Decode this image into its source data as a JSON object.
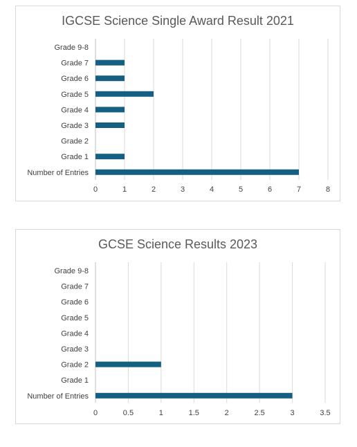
{
  "chart_data": [
    {
      "type": "bar",
      "orientation": "horizontal",
      "title": "IGCSE Science Single Award Result 2021",
      "categories": [
        "Grade 9-8",
        "Grade 7",
        "Grade 6",
        "Grade 5",
        "Grade 4",
        "Grade 3",
        "Grade 2",
        "Grade 1",
        "Number of Entries"
      ],
      "values": [
        0,
        1,
        1,
        2,
        1,
        1,
        0,
        1,
        7
      ],
      "xlim": [
        0,
        8
      ],
      "xticks": [
        "0",
        "1",
        "2",
        "3",
        "4",
        "5",
        "6",
        "7",
        "8"
      ],
      "xlabel": "",
      "ylabel": "",
      "grid": "vertical",
      "legend": "none",
      "bar_color": "#156082"
    },
    {
      "type": "bar",
      "orientation": "horizontal",
      "title": "GCSE Science Results 2023",
      "categories": [
        "Grade 9-8",
        "Grade 7",
        "Grade 6",
        "Grade 5",
        "Grade 4",
        "Grade 3",
        "Grade 2",
        "Grade 1",
        "Number of Entries"
      ],
      "values": [
        0,
        0,
        0,
        0,
        0,
        0,
        1,
        0,
        3
      ],
      "xlim": [
        0,
        3.5
      ],
      "xticks": [
        "0",
        "0.5",
        "1",
        "1.5",
        "2",
        "2.5",
        "3",
        "3.5"
      ],
      "xlabel": "",
      "ylabel": "",
      "grid": "vertical",
      "legend": "none",
      "bar_color": "#156082"
    }
  ]
}
